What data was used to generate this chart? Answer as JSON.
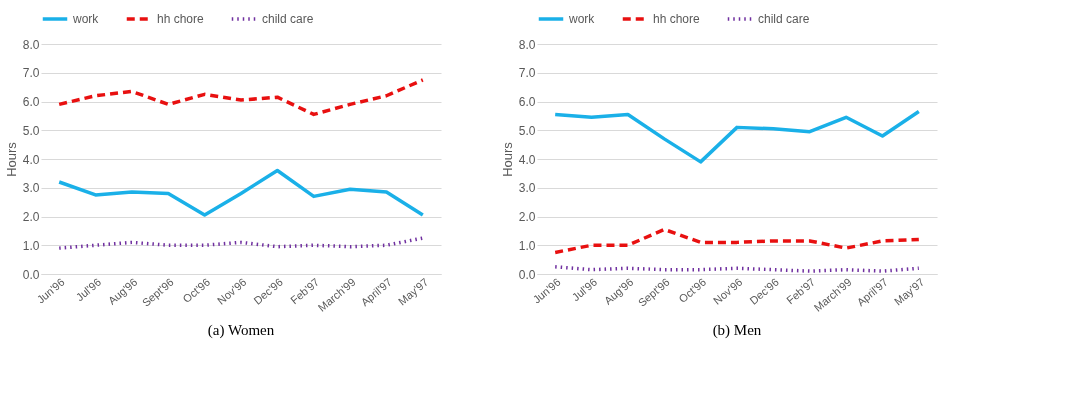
{
  "chart_data": [
    {
      "type": "line",
      "title": "(a)  Women",
      "ylabel": "Hours",
      "categories": [
        "Jun'96",
        "Jul'96",
        "Aug'96",
        "Sept'96",
        "Oct'96",
        "Nov'96",
        "Dec'96",
        "Feb'97",
        "March'99",
        "April'97",
        "May'97"
      ],
      "series": [
        {
          "name": "work",
          "color": "#1ab0e8",
          "line_style": "solid",
          "values": [
            3.2,
            2.75,
            2.85,
            2.8,
            2.05,
            2.8,
            3.6,
            2.7,
            2.95,
            2.85,
            2.05
          ]
        },
        {
          "name": "hh chore",
          "color": "#e81010",
          "line_style": "dashed",
          "values": [
            5.9,
            6.2,
            6.35,
            5.9,
            6.25,
            6.05,
            6.15,
            5.55,
            5.9,
            6.2,
            6.75
          ]
        },
        {
          "name": "child care",
          "color": "#7030a0",
          "line_style": "dotted",
          "values": [
            0.9,
            1.0,
            1.1,
            1.0,
            1.0,
            1.1,
            0.95,
            1.0,
            0.95,
            1.0,
            1.25
          ]
        }
      ],
      "ylim": [
        0,
        8
      ],
      "yticks": [
        {
          "value": 0,
          "label": "0.0"
        },
        {
          "value": 1,
          "label": "1.0"
        },
        {
          "value": 2,
          "label": "2.0"
        },
        {
          "value": 3,
          "label": "3.0"
        },
        {
          "value": 4,
          "label": "4.0"
        },
        {
          "value": 5,
          "label": "5.0"
        },
        {
          "value": 6,
          "label": "6.0"
        },
        {
          "value": 7,
          "label": "7.0"
        },
        {
          "value": 8,
          "label": "8.0"
        }
      ],
      "grid": "y",
      "legend": "top",
      "marker": "none"
    },
    {
      "type": "line",
      "title": "(b)  Men",
      "ylabel": "Hours",
      "categories": [
        "Jun'96",
        "Jul'96",
        "Aug'96",
        "Sept'96",
        "Oct'96",
        "Nov'96",
        "Dec'96",
        "Feb'97",
        "March'99",
        "April'97",
        "May'97"
      ],
      "series": [
        {
          "name": "work",
          "color": "#1ab0e8",
          "line_style": "solid",
          "values": [
            5.55,
            5.45,
            5.55,
            4.7,
            3.9,
            5.1,
            5.05,
            4.95,
            5.45,
            4.8,
            5.65
          ]
        },
        {
          "name": "hh chore",
          "color": "#e81010",
          "line_style": "dashed",
          "values": [
            0.75,
            1.0,
            1.0,
            1.55,
            1.1,
            1.1,
            1.15,
            1.15,
            0.9,
            1.15,
            1.2
          ]
        },
        {
          "name": "child care",
          "color": "#7030a0",
          "line_style": "dotted",
          "values": [
            0.25,
            0.15,
            0.2,
            0.15,
            0.15,
            0.2,
            0.15,
            0.1,
            0.15,
            0.1,
            0.2
          ]
        }
      ],
      "ylim": [
        0,
        8
      ],
      "yticks": [
        {
          "value": 0,
          "label": "0.0"
        },
        {
          "value": 1,
          "label": "1.0"
        },
        {
          "value": 2,
          "label": "2.0"
        },
        {
          "value": 3,
          "label": "3.0"
        },
        {
          "value": 4,
          "label": "4.0"
        },
        {
          "value": 5,
          "label": "5.0"
        },
        {
          "value": 6,
          "label": "6.0"
        },
        {
          "value": 7,
          "label": "7.0"
        },
        {
          "value": 8,
          "label": "8.0"
        }
      ],
      "grid": "y",
      "legend": "top",
      "marker": "none"
    }
  ]
}
